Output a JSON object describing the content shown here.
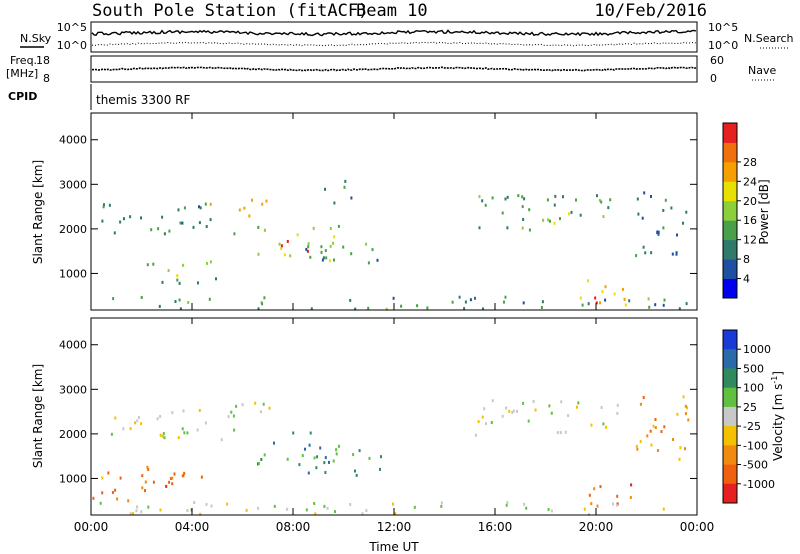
{
  "header": {
    "station": "South Pole Station (fitACF)",
    "beam": "Beam 10",
    "date": "10/Feb/2016"
  },
  "noise_panel": {
    "left_label": "N.Sky",
    "left_ticks": [
      "10^5",
      "10^0"
    ],
    "right_label": "N.Search",
    "right_ticks": [
      "10^5",
      "10^0"
    ]
  },
  "freq_panel": {
    "left_label_1": "Freq.",
    "left_label_2": "[MHz]",
    "left_ticks": [
      "18",
      "8"
    ],
    "right_label": "Nave",
    "right_ticks": [
      "60",
      "0"
    ]
  },
  "cpid": {
    "label": "CPID",
    "value": "themis 3300 RF"
  },
  "chart_data": [
    {
      "type": "heatmap",
      "name": "power",
      "ylabel": "Slant Range [km]",
      "xlabel": "",
      "x_ticks": [
        "00:00",
        "04:00",
        "08:00",
        "12:00",
        "16:00",
        "20:00",
        "00:00"
      ],
      "x_range_hours": [
        0,
        24
      ],
      "y_ticks": [
        1000,
        2000,
        3000,
        4000
      ],
      "ylim": [
        180,
        4600
      ],
      "colorbar": {
        "label": "Power [dB]",
        "ticks": [
          "4",
          "8",
          "12",
          "16",
          "20",
          "24",
          "28"
        ],
        "range": [
          0,
          30
        ],
        "colors": [
          "#0000ee",
          "#1e4fa0",
          "#2f7a6a",
          "#4aa04a",
          "#8ccf3a",
          "#e8e000",
          "#f5a000",
          "#f07010",
          "#e62020"
        ]
      },
      "regions": [
        {
          "t": [
            0.2,
            5.8
          ],
          "r": [
            1900,
            2600
          ],
          "level": 9
        },
        {
          "t": [
            4.7,
            7.2
          ],
          "r": [
            2300,
            2700
          ],
          "level": 22
        },
        {
          "t": [
            6.5,
            9.8
          ],
          "r": [
            1300,
            2100
          ],
          "level": 14
        },
        {
          "t": [
            7.5,
            8.6
          ],
          "r": [
            1500,
            1900
          ],
          "level": 27
        },
        {
          "t": [
            2.0,
            5.0
          ],
          "r": [
            800,
            1300
          ],
          "level": 12
        },
        {
          "t": [
            3.0,
            4.5
          ],
          "r": [
            950,
            1150
          ],
          "level": 18
        },
        {
          "t": [
            8.0,
            11.5
          ],
          "r": [
            1100,
            1700
          ],
          "level": 10
        },
        {
          "t": [
            9.0,
            10.5
          ],
          "r": [
            2600,
            3100
          ],
          "level": 8
        },
        {
          "t": [
            15.0,
            21.0
          ],
          "r": [
            2000,
            2800
          ],
          "level": 11
        },
        {
          "t": [
            17.5,
            19.5
          ],
          "r": [
            2100,
            2400
          ],
          "level": 15
        },
        {
          "t": [
            19.2,
            21.5
          ],
          "r": [
            300,
            900
          ],
          "level": 20
        },
        {
          "t": [
            19.6,
            20.4
          ],
          "r": [
            350,
            650
          ],
          "level": 29
        },
        {
          "t": [
            21.5,
            24.0
          ],
          "r": [
            1400,
            2900
          ],
          "level": 7
        },
        {
          "t": [
            0.0,
            24.0
          ],
          "r": [
            200,
            500
          ],
          "level": 10
        }
      ]
    },
    {
      "type": "heatmap",
      "name": "velocity",
      "ylabel": "Slant Range [km]",
      "xlabel": "Time UT",
      "x_ticks": [
        "00:00",
        "04:00",
        "08:00",
        "12:00",
        "16:00",
        "20:00",
        "00:00"
      ],
      "x_range_hours": [
        0,
        24
      ],
      "y_ticks": [
        1000,
        2000,
        3000,
        4000
      ],
      "ylim": [
        180,
        4600
      ],
      "colorbar": {
        "label": "Velocity [m s^-1]",
        "ticks": [
          "1000",
          "500",
          "100",
          "25",
          "-25",
          "-100",
          "-500",
          "-1000"
        ],
        "colors": [
          "#1a3ad8",
          "#2a6aa8",
          "#2f8a60",
          "#60c040",
          "#c8c8c8",
          "#f5c000",
          "#f08a10",
          "#f06010",
          "#e62020"
        ]
      },
      "regions": [
        {
          "t": [
            0.2,
            5.8
          ],
          "r": [
            1900,
            2600
          ],
          "class": 4
        },
        {
          "t": [
            4.7,
            7.2
          ],
          "r": [
            2300,
            2800
          ],
          "class": 4
        },
        {
          "t": [
            6.5,
            9.8
          ],
          "r": [
            1300,
            2100
          ],
          "class": 2
        },
        {
          "t": [
            2.0,
            5.0
          ],
          "r": [
            800,
            1300
          ],
          "class": 7
        },
        {
          "t": [
            0.0,
            2.5
          ],
          "r": [
            500,
            1500
          ],
          "class": 6
        },
        {
          "t": [
            8.0,
            11.5
          ],
          "r": [
            1100,
            1700
          ],
          "class": 2
        },
        {
          "t": [
            15.0,
            21.0
          ],
          "r": [
            2000,
            2800
          ],
          "class": 4
        },
        {
          "t": [
            19.2,
            21.5
          ],
          "r": [
            300,
            900
          ],
          "class": 7
        },
        {
          "t": [
            21.5,
            24.0
          ],
          "r": [
            1400,
            2900
          ],
          "class": 6
        },
        {
          "t": [
            0.0,
            24.0
          ],
          "r": [
            200,
            500
          ],
          "class": 4
        }
      ]
    }
  ]
}
